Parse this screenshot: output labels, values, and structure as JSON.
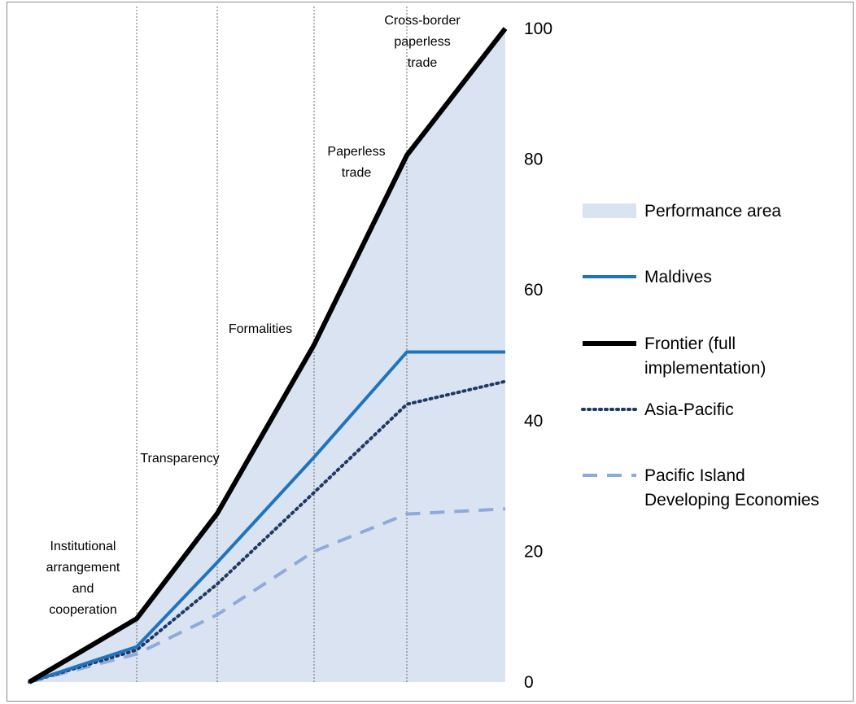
{
  "chart_data": {
    "type": "area",
    "title": "",
    "xlabel": "",
    "ylabel": "",
    "ylim": [
      0,
      100
    ],
    "y_axis_position": "right",
    "y_ticks": [
      "0",
      "20",
      "40",
      "60",
      "80",
      "100"
    ],
    "grid": "vertical dotted separators between categories",
    "categories": [
      "Institutional arrangement and cooperation",
      "Transparency",
      "Formalities",
      "Paperless trade",
      "Cross-border paperless trade"
    ],
    "category_label_lines": [
      [
        "Institutional",
        "arrangement",
        "and",
        "cooperation"
      ],
      [
        "Transparency"
      ],
      [
        "Formalities"
      ],
      [
        "Paperless",
        "trade"
      ],
      [
        "Cross-border",
        "paperless",
        "trade"
      ]
    ],
    "x": [
      0,
      1,
      2,
      3,
      4,
      5
    ],
    "series": [
      {
        "name": "Performance area",
        "type": "area",
        "color": "#dae3f1",
        "values": [
          0,
          9.7,
          25.8,
          51.6,
          80.6,
          100
        ]
      },
      {
        "name": "Maldives",
        "type": "line",
        "style": "solid",
        "color": "#1f74bd",
        "values": [
          0,
          5.4,
          18.3,
          34.4,
          50.5,
          50.5
        ]
      },
      {
        "name": "Frontier (full implementation)",
        "type": "line",
        "style": "solid-thick",
        "color": "#000000",
        "values": [
          0,
          9.7,
          25.8,
          51.6,
          80.6,
          100
        ]
      },
      {
        "name": "Asia-Pacific",
        "type": "line",
        "style": "dotted",
        "color": "#1f3864",
        "values": [
          0,
          4.9,
          15.0,
          29.0,
          42.5,
          46.0
        ]
      },
      {
        "name": "Pacific Island Developing Economies",
        "type": "line",
        "style": "dashed",
        "color": "#8eaadb",
        "values": [
          0,
          4.3,
          10.3,
          20.0,
          25.7,
          26.5
        ]
      }
    ],
    "legend_position": "right",
    "legend_label_lines": [
      [
        "Performance area"
      ],
      [
        "Maldives"
      ],
      [
        "Frontier (full",
        "implementation)"
      ],
      [
        "Asia-Pacific"
      ],
      [
        "Pacific Island",
        "Developing Economies"
      ]
    ]
  }
}
